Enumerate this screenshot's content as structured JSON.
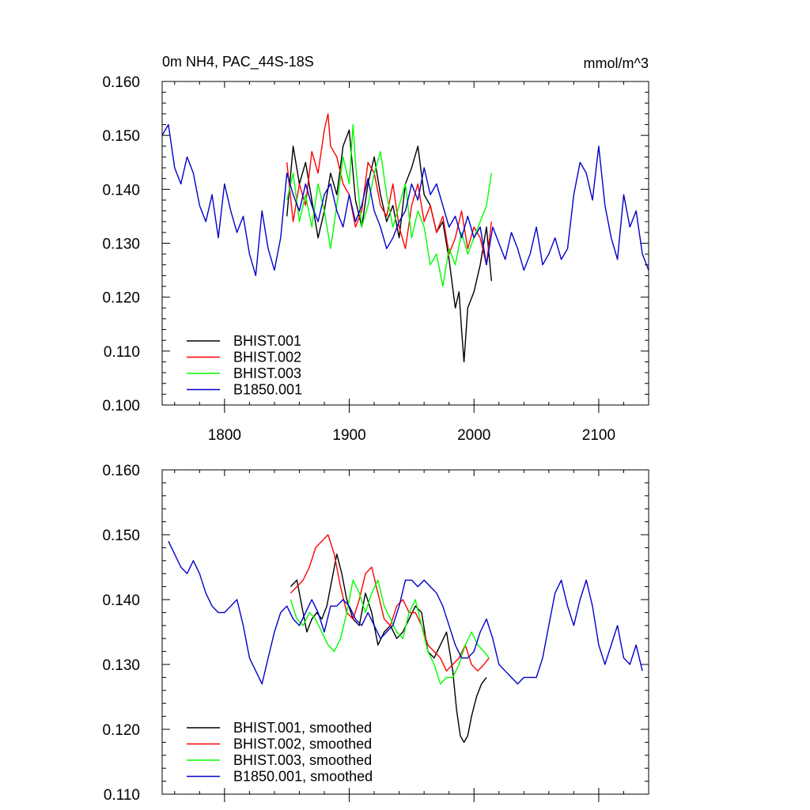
{
  "chart_data": [
    {
      "type": "line",
      "title": "0m NH4, PAC_44S-18S",
      "units": "mmol/m^3",
      "xlim": [
        1750,
        2140
      ],
      "ylim": [
        0.1,
        0.16
      ],
      "x_ticks": [
        1800,
        1900,
        2000,
        2100
      ],
      "x_tick_labels": [
        "1800",
        "1900",
        "2000",
        "2100"
      ],
      "y_ticks": [
        0.1,
        0.11,
        0.12,
        0.13,
        0.14,
        0.15,
        0.16
      ],
      "y_tick_labels": [
        "0.100",
        "0.110",
        "0.120",
        "0.130",
        "0.140",
        "0.150",
        "0.160"
      ],
      "legend_position": "bottom-left",
      "series": [
        {
          "name": "BHIST.001",
          "color": "#000000",
          "x": [
            1850,
            1855,
            1860,
            1865,
            1870,
            1875,
            1880,
            1885,
            1890,
            1895,
            1900,
            1905,
            1910,
            1915,
            1920,
            1925,
            1930,
            1935,
            1940,
            1945,
            1950,
            1955,
            1960,
            1965,
            1970,
            1975,
            1980,
            1985,
            1988,
            1990,
            1992,
            1995,
            2000,
            2005,
            2010,
            2014
          ],
          "values": [
            0.135,
            0.148,
            0.141,
            0.145,
            0.138,
            0.131,
            0.136,
            0.143,
            0.139,
            0.148,
            0.151,
            0.138,
            0.133,
            0.141,
            0.146,
            0.139,
            0.134,
            0.137,
            0.131,
            0.141,
            0.144,
            0.148,
            0.139,
            0.137,
            0.132,
            0.134,
            0.127,
            0.118,
            0.121,
            0.114,
            0.108,
            0.118,
            0.121,
            0.126,
            0.133,
            0.123
          ]
        },
        {
          "name": "BHIST.002",
          "color": "#ff0000",
          "x": [
            1850,
            1855,
            1860,
            1865,
            1870,
            1875,
            1880,
            1883,
            1885,
            1890,
            1895,
            1900,
            1905,
            1910,
            1915,
            1920,
            1925,
            1930,
            1935,
            1940,
            1945,
            1950,
            1955,
            1960,
            1965,
            1970,
            1975,
            1980,
            1985,
            1990,
            1995,
            2000,
            2005,
            2010,
            2014
          ],
          "values": [
            0.145,
            0.134,
            0.141,
            0.137,
            0.147,
            0.143,
            0.151,
            0.154,
            0.148,
            0.146,
            0.141,
            0.139,
            0.133,
            0.136,
            0.145,
            0.143,
            0.137,
            0.135,
            0.141,
            0.133,
            0.129,
            0.137,
            0.141,
            0.134,
            0.137,
            0.132,
            0.135,
            0.128,
            0.131,
            0.136,
            0.129,
            0.133,
            0.131,
            0.126,
            0.134
          ]
        },
        {
          "name": "BHIST.003",
          "color": "#00ff00",
          "x": [
            1850,
            1855,
            1860,
            1865,
            1870,
            1875,
            1880,
            1885,
            1890,
            1895,
            1900,
            1903,
            1905,
            1910,
            1915,
            1920,
            1925,
            1930,
            1935,
            1940,
            1945,
            1950,
            1955,
            1960,
            1965,
            1970,
            1975,
            1980,
            1985,
            1990,
            1995,
            2000,
            2005,
            2010,
            2014
          ],
          "values": [
            0.138,
            0.143,
            0.134,
            0.139,
            0.133,
            0.141,
            0.136,
            0.129,
            0.137,
            0.146,
            0.141,
            0.152,
            0.145,
            0.133,
            0.137,
            0.143,
            0.147,
            0.139,
            0.133,
            0.137,
            0.141,
            0.131,
            0.136,
            0.133,
            0.126,
            0.128,
            0.122,
            0.129,
            0.126,
            0.132,
            0.128,
            0.131,
            0.134,
            0.137,
            0.143
          ]
        },
        {
          "name": "B1850.001",
          "color": "#0000cc",
          "x": [
            1750,
            1755,
            1760,
            1765,
            1770,
            1775,
            1780,
            1785,
            1790,
            1795,
            1800,
            1805,
            1810,
            1815,
            1820,
            1825,
            1830,
            1835,
            1840,
            1845,
            1850,
            1855,
            1860,
            1865,
            1870,
            1875,
            1880,
            1885,
            1890,
            1895,
            1900,
            1905,
            1910,
            1915,
            1920,
            1925,
            1930,
            1935,
            1940,
            1945,
            1950,
            1955,
            1960,
            1965,
            1970,
            1975,
            1980,
            1985,
            1990,
            1995,
            2000,
            2005,
            2010,
            2015,
            2020,
            2025,
            2030,
            2035,
            2040,
            2045,
            2050,
            2055,
            2060,
            2065,
            2070,
            2075,
            2080,
            2085,
            2090,
            2095,
            2100,
            2105,
            2110,
            2115,
            2120,
            2125,
            2130,
            2135,
            2140
          ],
          "values": [
            0.15,
            0.152,
            0.144,
            0.141,
            0.146,
            0.143,
            0.137,
            0.134,
            0.139,
            0.131,
            0.141,
            0.136,
            0.132,
            0.135,
            0.128,
            0.124,
            0.136,
            0.129,
            0.125,
            0.131,
            0.143,
            0.139,
            0.136,
            0.141,
            0.137,
            0.134,
            0.139,
            0.141,
            0.136,
            0.133,
            0.139,
            0.134,
            0.137,
            0.142,
            0.136,
            0.133,
            0.129,
            0.131,
            0.134,
            0.136,
            0.141,
            0.138,
            0.144,
            0.139,
            0.141,
            0.137,
            0.133,
            0.135,
            0.131,
            0.135,
            0.131,
            0.133,
            0.126,
            0.133,
            0.13,
            0.127,
            0.132,
            0.129,
            0.125,
            0.128,
            0.133,
            0.126,
            0.128,
            0.131,
            0.127,
            0.129,
            0.139,
            0.145,
            0.143,
            0.138,
            0.148,
            0.137,
            0.131,
            0.127,
            0.139,
            0.133,
            0.136,
            0.128,
            0.125
          ]
        }
      ]
    },
    {
      "type": "line",
      "title": "",
      "xlim": [
        1750,
        2140
      ],
      "ylim": [
        0.11,
        0.16
      ],
      "x_ticks": [
        1800,
        1900,
        2000,
        2100
      ],
      "y_ticks": [
        0.11,
        0.12,
        0.13,
        0.14,
        0.15,
        0.16
      ],
      "y_tick_labels": [
        "0.110",
        "0.120",
        "0.130",
        "0.140",
        "0.150",
        "0.160"
      ],
      "legend_position": "bottom-left",
      "series": [
        {
          "name": "BHIST.001, smoothed",
          "color": "#000000",
          "x": [
            1853,
            1858,
            1862,
            1866,
            1870,
            1874,
            1878,
            1882,
            1886,
            1890,
            1894,
            1898,
            1903,
            1908,
            1913,
            1918,
            1923,
            1928,
            1933,
            1938,
            1943,
            1948,
            1953,
            1958,
            1963,
            1968,
            1973,
            1978,
            1983,
            1986,
            1989,
            1992,
            1995,
            1998,
            2002,
            2006,
            2010
          ],
          "values": [
            0.142,
            0.143,
            0.139,
            0.135,
            0.137,
            0.138,
            0.137,
            0.139,
            0.143,
            0.147,
            0.144,
            0.14,
            0.137,
            0.136,
            0.141,
            0.138,
            0.133,
            0.135,
            0.136,
            0.134,
            0.135,
            0.137,
            0.139,
            0.138,
            0.132,
            0.131,
            0.133,
            0.135,
            0.129,
            0.123,
            0.119,
            0.118,
            0.119,
            0.122,
            0.125,
            0.127,
            0.128
          ]
        },
        {
          "name": "BHIST.002, smoothed",
          "color": "#ff0000",
          "x": [
            1853,
            1858,
            1863,
            1868,
            1873,
            1878,
            1883,
            1888,
            1893,
            1898,
            1903,
            1908,
            1913,
            1918,
            1923,
            1928,
            1933,
            1938,
            1943,
            1948,
            1953,
            1958,
            1963,
            1968,
            1973,
            1978,
            1983,
            1988,
            1993,
            1998,
            2003,
            2008,
            2012
          ],
          "values": [
            0.141,
            0.142,
            0.143,
            0.145,
            0.148,
            0.149,
            0.15,
            0.147,
            0.142,
            0.138,
            0.137,
            0.14,
            0.144,
            0.145,
            0.141,
            0.137,
            0.136,
            0.139,
            0.14,
            0.138,
            0.138,
            0.136,
            0.133,
            0.132,
            0.131,
            0.129,
            0.13,
            0.131,
            0.133,
            0.13,
            0.129,
            0.13,
            0.131
          ]
        },
        {
          "name": "BHIST.003, smoothed",
          "color": "#00ff00",
          "x": [
            1853,
            1858,
            1863,
            1868,
            1873,
            1878,
            1883,
            1888,
            1893,
            1898,
            1903,
            1908,
            1913,
            1918,
            1923,
            1928,
            1933,
            1938,
            1943,
            1948,
            1953,
            1958,
            1963,
            1968,
            1973,
            1978,
            1983,
            1988,
            1993,
            1998,
            2003,
            2008,
            2012
          ],
          "values": [
            0.14,
            0.137,
            0.136,
            0.138,
            0.137,
            0.135,
            0.133,
            0.132,
            0.134,
            0.138,
            0.143,
            0.141,
            0.138,
            0.141,
            0.143,
            0.139,
            0.137,
            0.135,
            0.134,
            0.138,
            0.14,
            0.136,
            0.132,
            0.13,
            0.127,
            0.128,
            0.128,
            0.13,
            0.133,
            0.135,
            0.133,
            0.132,
            0.131
          ]
        },
        {
          "name": "B1850.001, smoothed",
          "color": "#0000cc",
          "x": [
            1755,
            1760,
            1765,
            1770,
            1775,
            1780,
            1785,
            1790,
            1795,
            1800,
            1805,
            1810,
            1815,
            1820,
            1825,
            1830,
            1835,
            1840,
            1845,
            1850,
            1855,
            1860,
            1865,
            1870,
            1875,
            1880,
            1885,
            1890,
            1895,
            1900,
            1905,
            1910,
            1915,
            1920,
            1925,
            1930,
            1935,
            1940,
            1945,
            1950,
            1955,
            1960,
            1965,
            1970,
            1975,
            1980,
            1985,
            1990,
            1995,
            2000,
            2005,
            2010,
            2015,
            2020,
            2025,
            2030,
            2035,
            2040,
            2045,
            2050,
            2055,
            2060,
            2065,
            2070,
            2075,
            2080,
            2085,
            2090,
            2095,
            2100,
            2105,
            2110,
            2115,
            2120,
            2125,
            2130,
            2135
          ],
          "values": [
            0.149,
            0.147,
            0.145,
            0.144,
            0.146,
            0.144,
            0.141,
            0.139,
            0.138,
            0.138,
            0.139,
            0.14,
            0.136,
            0.131,
            0.129,
            0.127,
            0.131,
            0.135,
            0.138,
            0.139,
            0.137,
            0.136,
            0.138,
            0.14,
            0.138,
            0.135,
            0.139,
            0.139,
            0.14,
            0.139,
            0.137,
            0.136,
            0.138,
            0.136,
            0.134,
            0.135,
            0.136,
            0.139,
            0.143,
            0.143,
            0.142,
            0.143,
            0.142,
            0.141,
            0.139,
            0.136,
            0.133,
            0.131,
            0.131,
            0.132,
            0.135,
            0.137,
            0.134,
            0.13,
            0.129,
            0.128,
            0.127,
            0.128,
            0.128,
            0.128,
            0.131,
            0.136,
            0.141,
            0.143,
            0.139,
            0.136,
            0.14,
            0.143,
            0.139,
            0.133,
            0.13,
            0.133,
            0.136,
            0.131,
            0.13,
            0.133,
            0.129
          ]
        }
      ]
    }
  ]
}
